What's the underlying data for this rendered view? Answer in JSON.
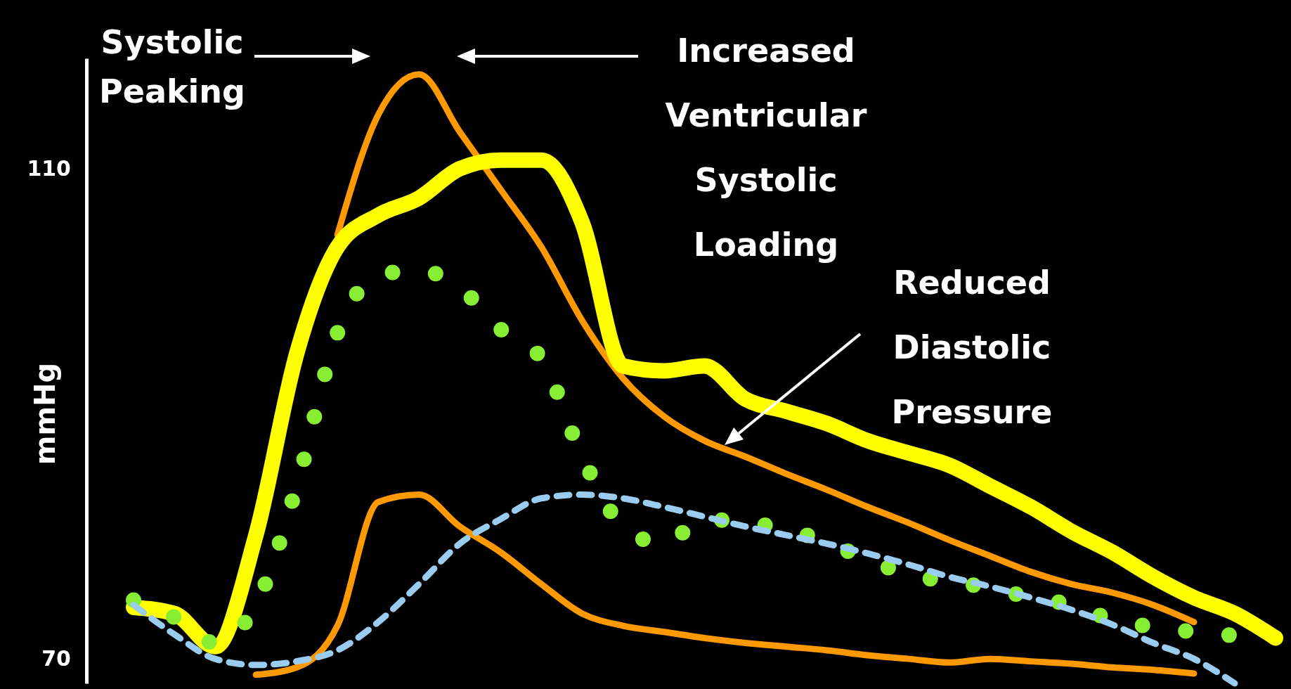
{
  "chart_data": {
    "type": "line",
    "ylabel": "mmHg",
    "categories": [
      null,
      null,
      null,
      null,
      null,
      null,
      null,
      null,
      null,
      null,
      null,
      null,
      null,
      null,
      null,
      null,
      null,
      null,
      null,
      null,
      null,
      null,
      null,
      null,
      null,
      null,
      null,
      null,
      null
    ],
    "ylim": [
      68,
      119
    ],
    "yticks": [
      70,
      110
    ],
    "tick_labels": "y",
    "grid": false,
    "annotations": [
      "Systolic Peaking",
      "Increased Ventricular Systolic Loading",
      "Reduced Diastolic Pressure"
    ],
    "series": [
      {
        "color": "#ff9900",
        "line_style": "solid",
        "values": [
          null,
          null,
          null,
          null,
          null,
          104.6,
          114.4,
          117.7,
          113.0,
          108.3,
          103.6,
          97.6,
          92.9,
          89.8,
          87.8,
          86.5,
          85.1,
          83.8,
          82.4,
          81.1,
          79.7,
          78.4,
          77.1,
          76.1,
          75.4,
          74.4,
          73.0,
          null,
          null
        ]
      },
      {
        "color": "#ff9900",
        "line_style": "solid",
        "values": [
          null,
          null,
          null,
          68.7,
          69.3,
          72.7,
          82.8,
          83.4,
          80.8,
          78.7,
          76.1,
          73.7,
          72.7,
          72.2,
          71.7,
          71.3,
          71.0,
          70.7,
          70.3,
          70.0,
          69.7,
          70.0,
          69.8,
          69.6,
          69.3,
          69.1,
          68.8,
          null,
          null
        ]
      },
      {
        "color": "#ffff00",
        "line_style": "solid",
        "values": [
          74.2,
          73.7,
          71.0,
          80.1,
          94.9,
          103.6,
          106.2,
          107.6,
          110.0,
          110.7,
          110.7,
          105.6,
          93.9,
          93.5,
          93.9,
          91.2,
          90.2,
          89.2,
          87.8,
          86.8,
          85.8,
          84.1,
          82.4,
          80.4,
          78.7,
          76.7,
          75.0,
          73.7,
          71.7
        ]
      },
      {
        "color": "#88ee33",
        "line_style": "dotted",
        "values": [
          74.8,
          73.4,
          71.3,
          74.4,
          84.1,
          96.6,
          101.3,
          101.7,
          100.3,
          96.9,
          94.5,
          86.5,
          80.8,
          79.4,
          81.4,
          81.1,
          80.6,
          79.5,
          78.1,
          76.9,
          76.3,
          75.8,
          75.0,
          74.4,
          73.2,
          72.6,
          72.2,
          71.9,
          null
        ]
      },
      {
        "color": "#99ccee",
        "line_style": "dashed",
        "values": [
          74.4,
          72.0,
          70.0,
          69.5,
          69.8,
          70.7,
          73.0,
          76.1,
          79.4,
          81.4,
          83.1,
          83.4,
          83.1,
          82.4,
          81.6,
          80.8,
          80.1,
          79.4,
          78.6,
          77.7,
          76.7,
          75.9,
          75.0,
          74.0,
          72.8,
          71.3,
          70.0,
          68.0,
          null
        ]
      }
    ]
  }
}
